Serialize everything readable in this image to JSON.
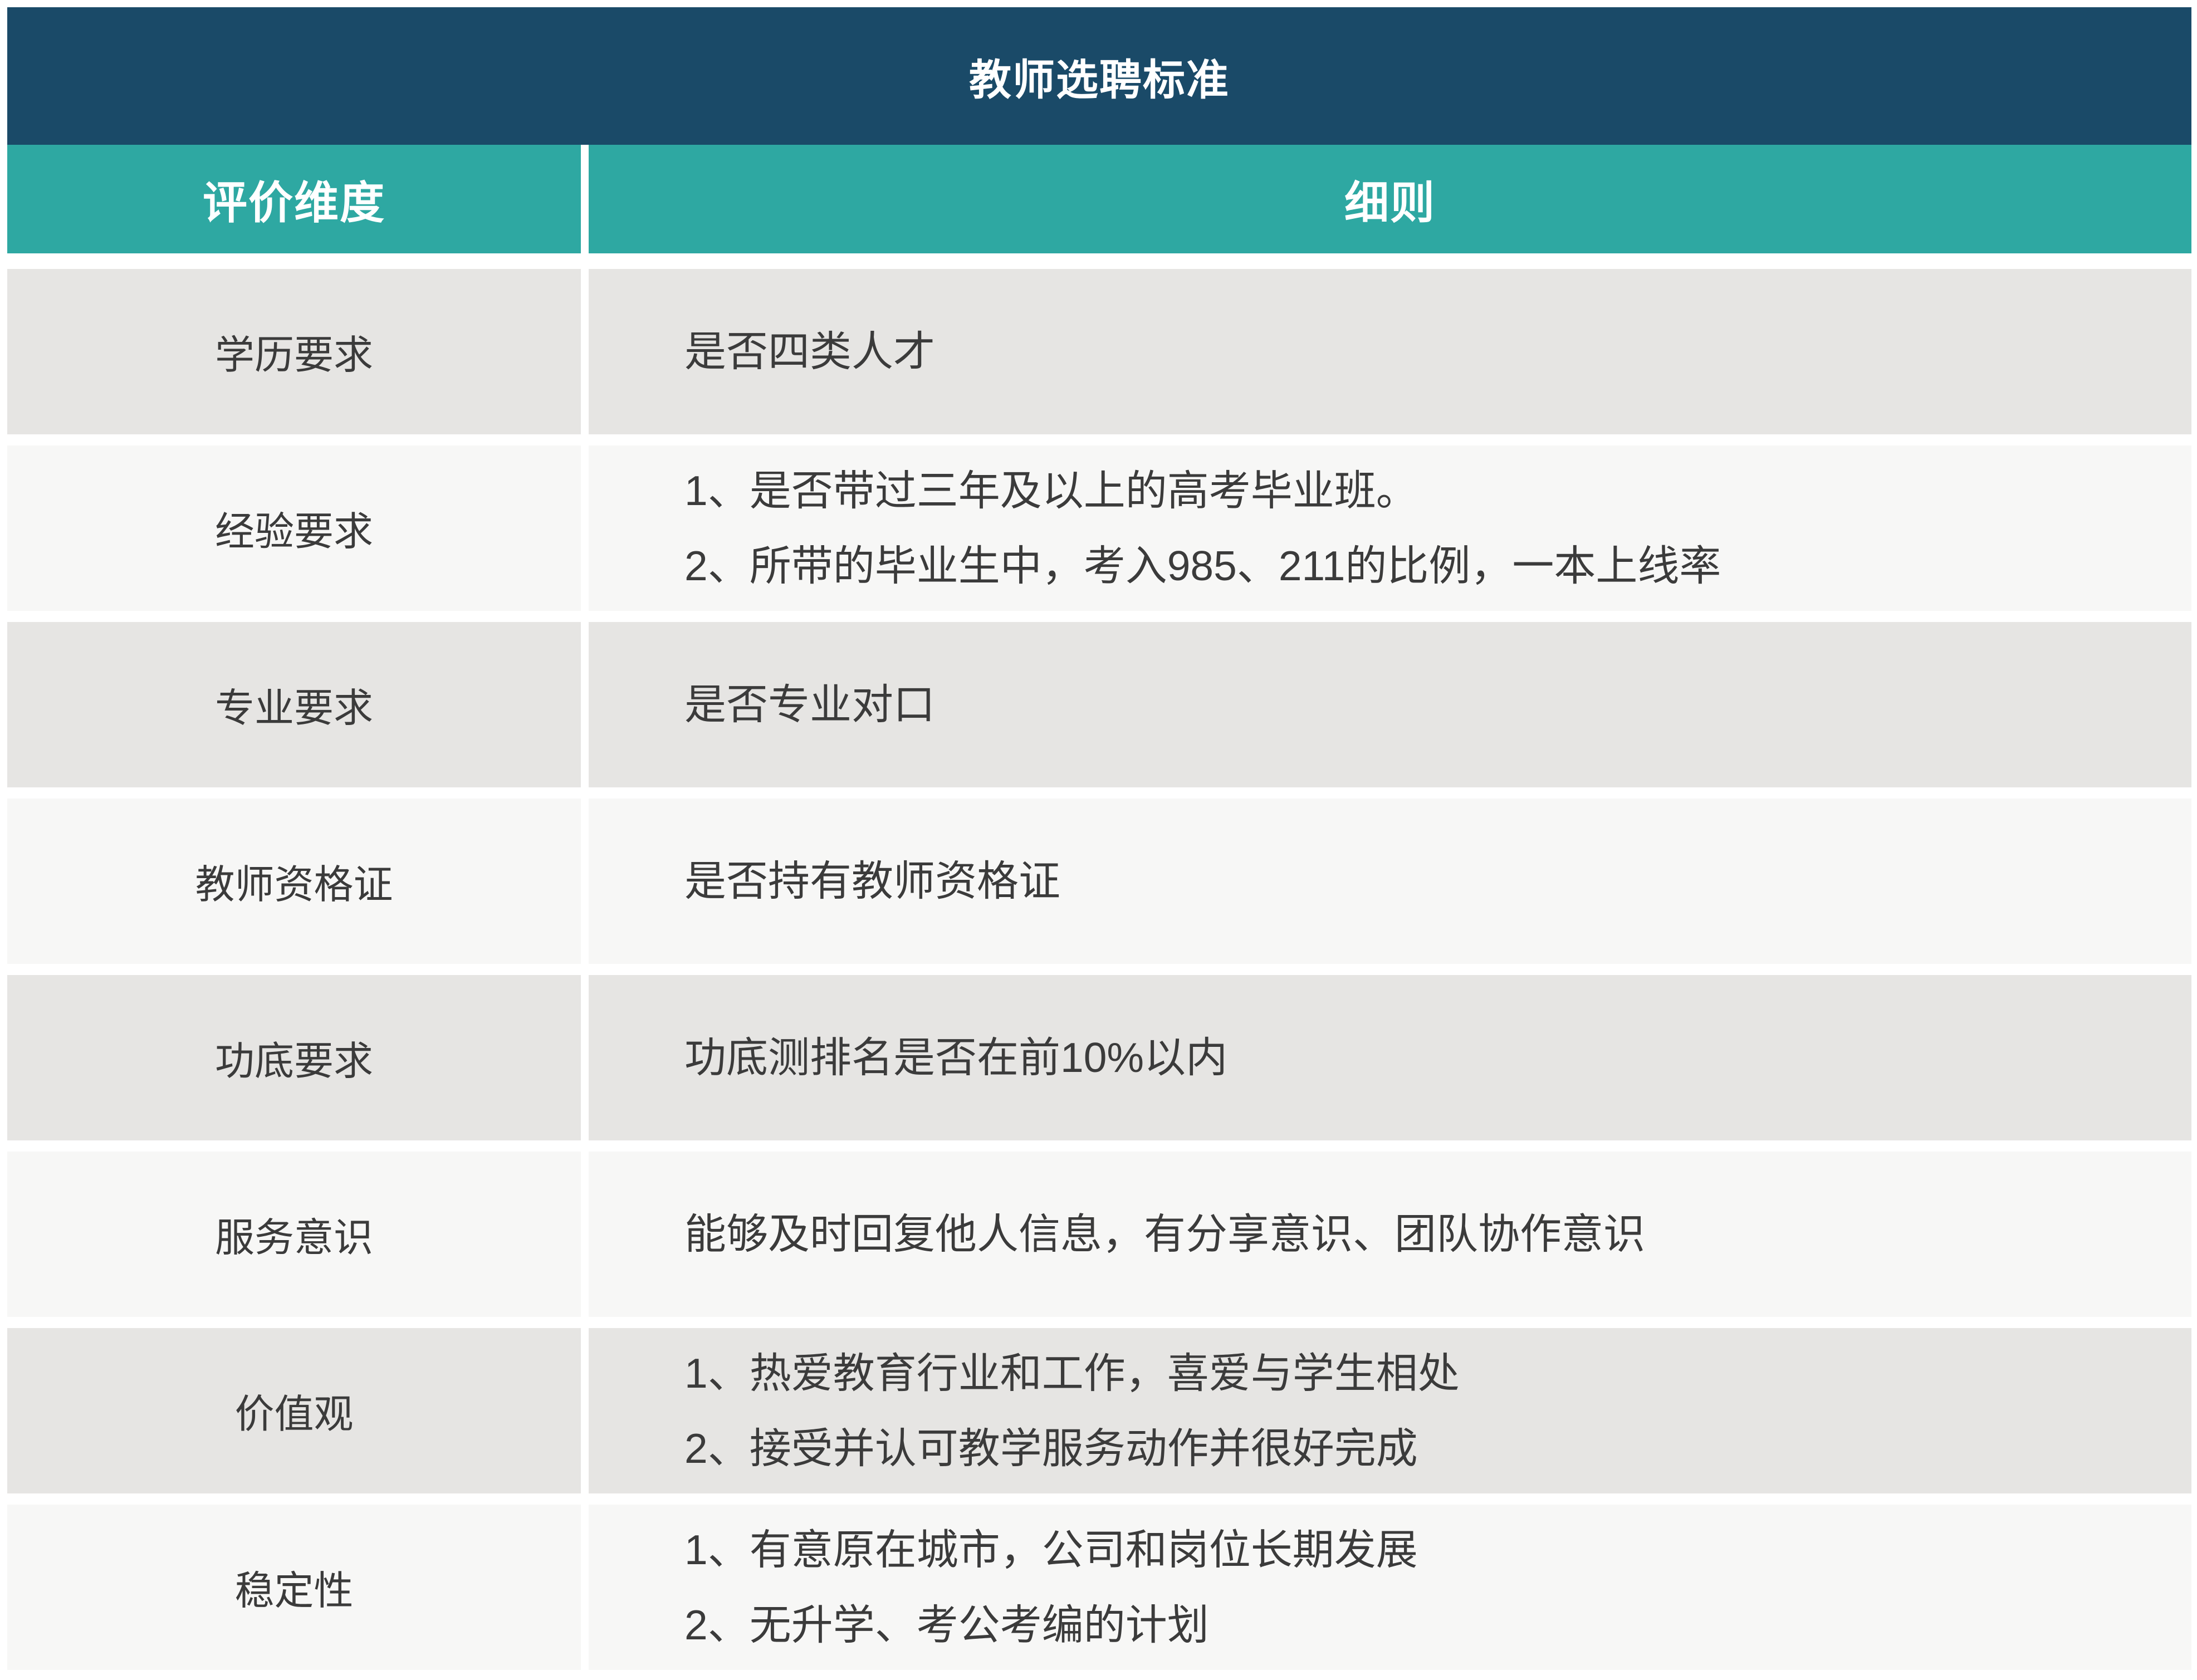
{
  "title": "教师选聘标准",
  "columns": {
    "dimension": "评价维度",
    "details": "细则"
  },
  "rows": [
    {
      "dimension": "学历要求",
      "details": [
        "是否四类人才"
      ]
    },
    {
      "dimension": "经验要求",
      "details": [
        "1、是否带过三年及以上的高考毕业班。",
        "2、所带的毕业生中，考入985、211的比例，一本上线率"
      ]
    },
    {
      "dimension": "专业要求",
      "details": [
        "是否专业对口"
      ]
    },
    {
      "dimension": "教师资格证",
      "details": [
        "是否持有教师资格证"
      ]
    },
    {
      "dimension": "功底要求",
      "details": [
        "功底测排名是否在前10%以内"
      ]
    },
    {
      "dimension": "服务意识",
      "details": [
        "能够及时回复他人信息，有分享意识、团队协作意识"
      ]
    },
    {
      "dimension": "价值观",
      "details": [
        "1、热爱教育行业和工作，喜爱与学生相处",
        "2、接受并认可教学服务动作并很好完成"
      ]
    },
    {
      "dimension": "稳定性",
      "details": [
        "1、有意原在城市，公司和岗位长期发展",
        "2、无升学、考公考编的计划"
      ]
    }
  ],
  "colors": {
    "title_bar": "#1a4a68",
    "header_row": "#2ea8a2",
    "row_odd": "#e6e5e3",
    "row_even": "#f7f7f6",
    "text": "#3b3b3b",
    "header_text": "#ffffff",
    "gutter": "#ffffff"
  }
}
